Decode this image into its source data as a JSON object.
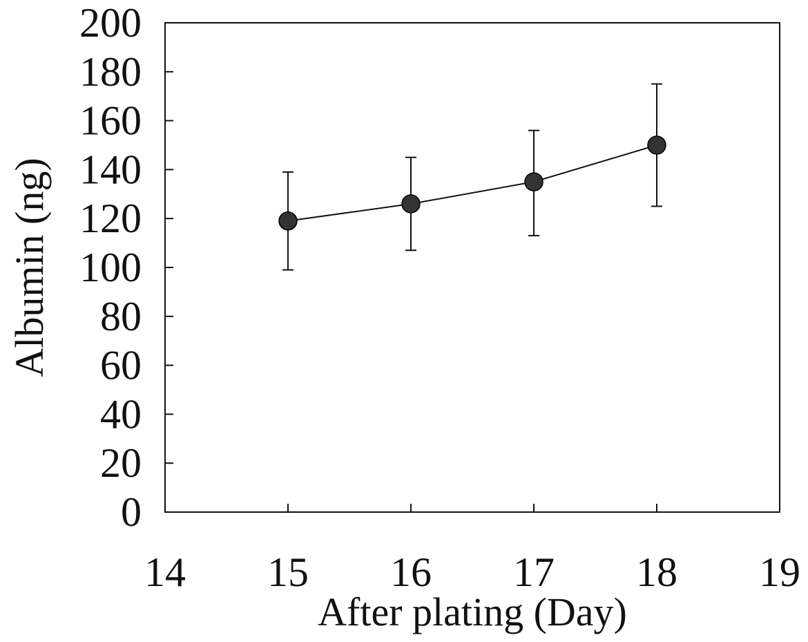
{
  "chart_data": {
    "type": "scatter",
    "connected": true,
    "title": "",
    "xlabel": "After plating (Day)",
    "ylabel": "Albumin (ng)",
    "xlim": [
      14,
      19
    ],
    "ylim": [
      0,
      200
    ],
    "xticks": [
      14,
      15,
      16,
      17,
      18,
      19
    ],
    "yticks": [
      0,
      20,
      40,
      60,
      80,
      100,
      120,
      140,
      160,
      180,
      200
    ],
    "grid": false,
    "legend": "none",
    "series": [
      {
        "x": [
          15,
          16,
          17,
          18
        ],
        "y": [
          119,
          126,
          135,
          150
        ],
        "error_low": [
          99,
          107,
          113,
          125
        ],
        "error_high": [
          139,
          145,
          156,
          175
        ]
      }
    ]
  },
  "colors": {
    "axis": "#111111",
    "marker": "#333333",
    "line": "#111111"
  }
}
